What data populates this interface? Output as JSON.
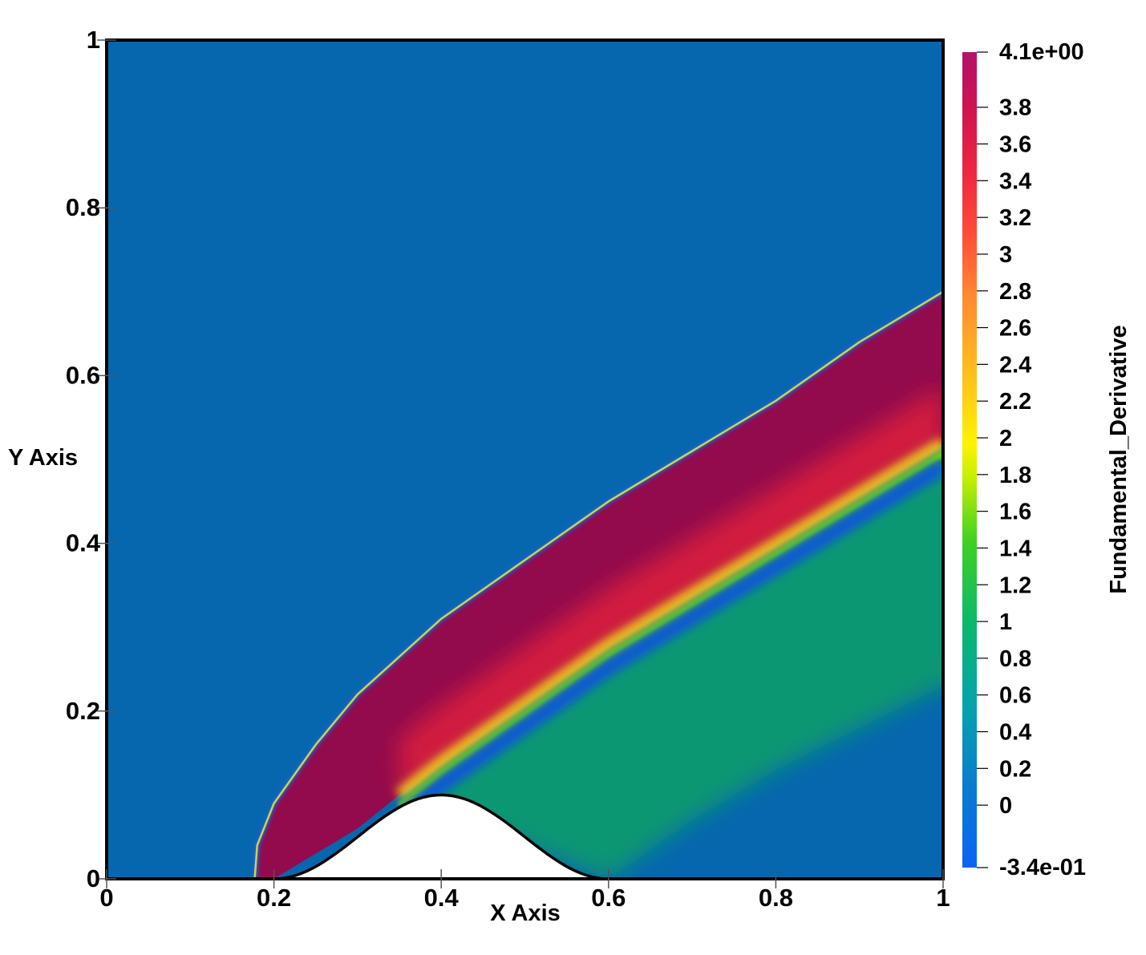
{
  "chart_data": {
    "type": "heatmap",
    "title": "",
    "xlabel": "X Axis",
    "ylabel": "Y Axis",
    "xlim": [
      0,
      1
    ],
    "ylim": [
      0,
      1
    ],
    "x_ticks": [
      0,
      0.2,
      0.4,
      0.6,
      0.8,
      1
    ],
    "x_tick_labels": [
      "0",
      "0.2",
      "0.4",
      "0.6",
      "0.8",
      "1"
    ],
    "y_ticks": [
      0,
      0.2,
      0.4,
      0.6,
      0.8,
      1
    ],
    "y_tick_labels": [
      "0",
      "0.2",
      "0.4",
      "0.6",
      "0.8",
      "1"
    ],
    "grid": false,
    "legend": "colorbar-right",
    "colorbar": {
      "title": "Fundamental_Derivative",
      "range": [
        -0.34,
        4.1
      ],
      "min_label": "-3.4e-01",
      "max_label": "4.1e+00",
      "ticks": [
        0,
        0.2,
        0.4,
        0.6,
        0.8,
        1,
        1.2,
        1.4,
        1.6,
        1.8,
        2,
        2.2,
        2.4,
        2.6,
        2.8,
        3,
        3.2,
        3.4,
        3.6,
        3.8
      ],
      "tick_labels": [
        "0",
        "0.2",
        "0.4",
        "0.6",
        "0.8",
        "1",
        "1.2",
        "1.4",
        "1.6",
        "1.8",
        "2",
        "2.2",
        "2.4",
        "2.6",
        "2.8",
        "3",
        "3.2",
        "3.4",
        "3.6",
        "3.8"
      ]
    },
    "field": {
      "freestream_value": 0.15,
      "post_shock_value": 3.9,
      "wake_value": 0.85,
      "expansion_dip_value": -0.05
    },
    "bump": {
      "x_start": 0.2,
      "x_peak": 0.4,
      "x_end": 0.6,
      "height": 0.1
    },
    "shock_curve": {
      "x": [
        0.177,
        0.18,
        0.2,
        0.25,
        0.3,
        0.4,
        0.5,
        0.6,
        0.7,
        0.8,
        0.9,
        1.0
      ],
      "y": [
        0.0,
        0.04,
        0.09,
        0.16,
        0.22,
        0.31,
        0.38,
        0.45,
        0.51,
        0.57,
        0.64,
        0.7
      ]
    },
    "expansion_curve": {
      "x": [
        0.35,
        0.4,
        0.5,
        0.6,
        0.7,
        0.8,
        0.9,
        1.0
      ],
      "y": [
        0.1,
        0.14,
        0.21,
        0.28,
        0.34,
        0.4,
        0.46,
        0.52
      ]
    },
    "wake_lower_curve": {
      "x": [
        0.6,
        0.7,
        0.8,
        0.9,
        1.0
      ],
      "y": [
        0.0,
        0.07,
        0.13,
        0.18,
        0.23
      ]
    },
    "colors": {
      "background_field": "#0767ae",
      "post_shock": "#930b4c",
      "wake": "#0c9a70",
      "bump_fill": "#ffffff",
      "outline": "#000000"
    }
  }
}
